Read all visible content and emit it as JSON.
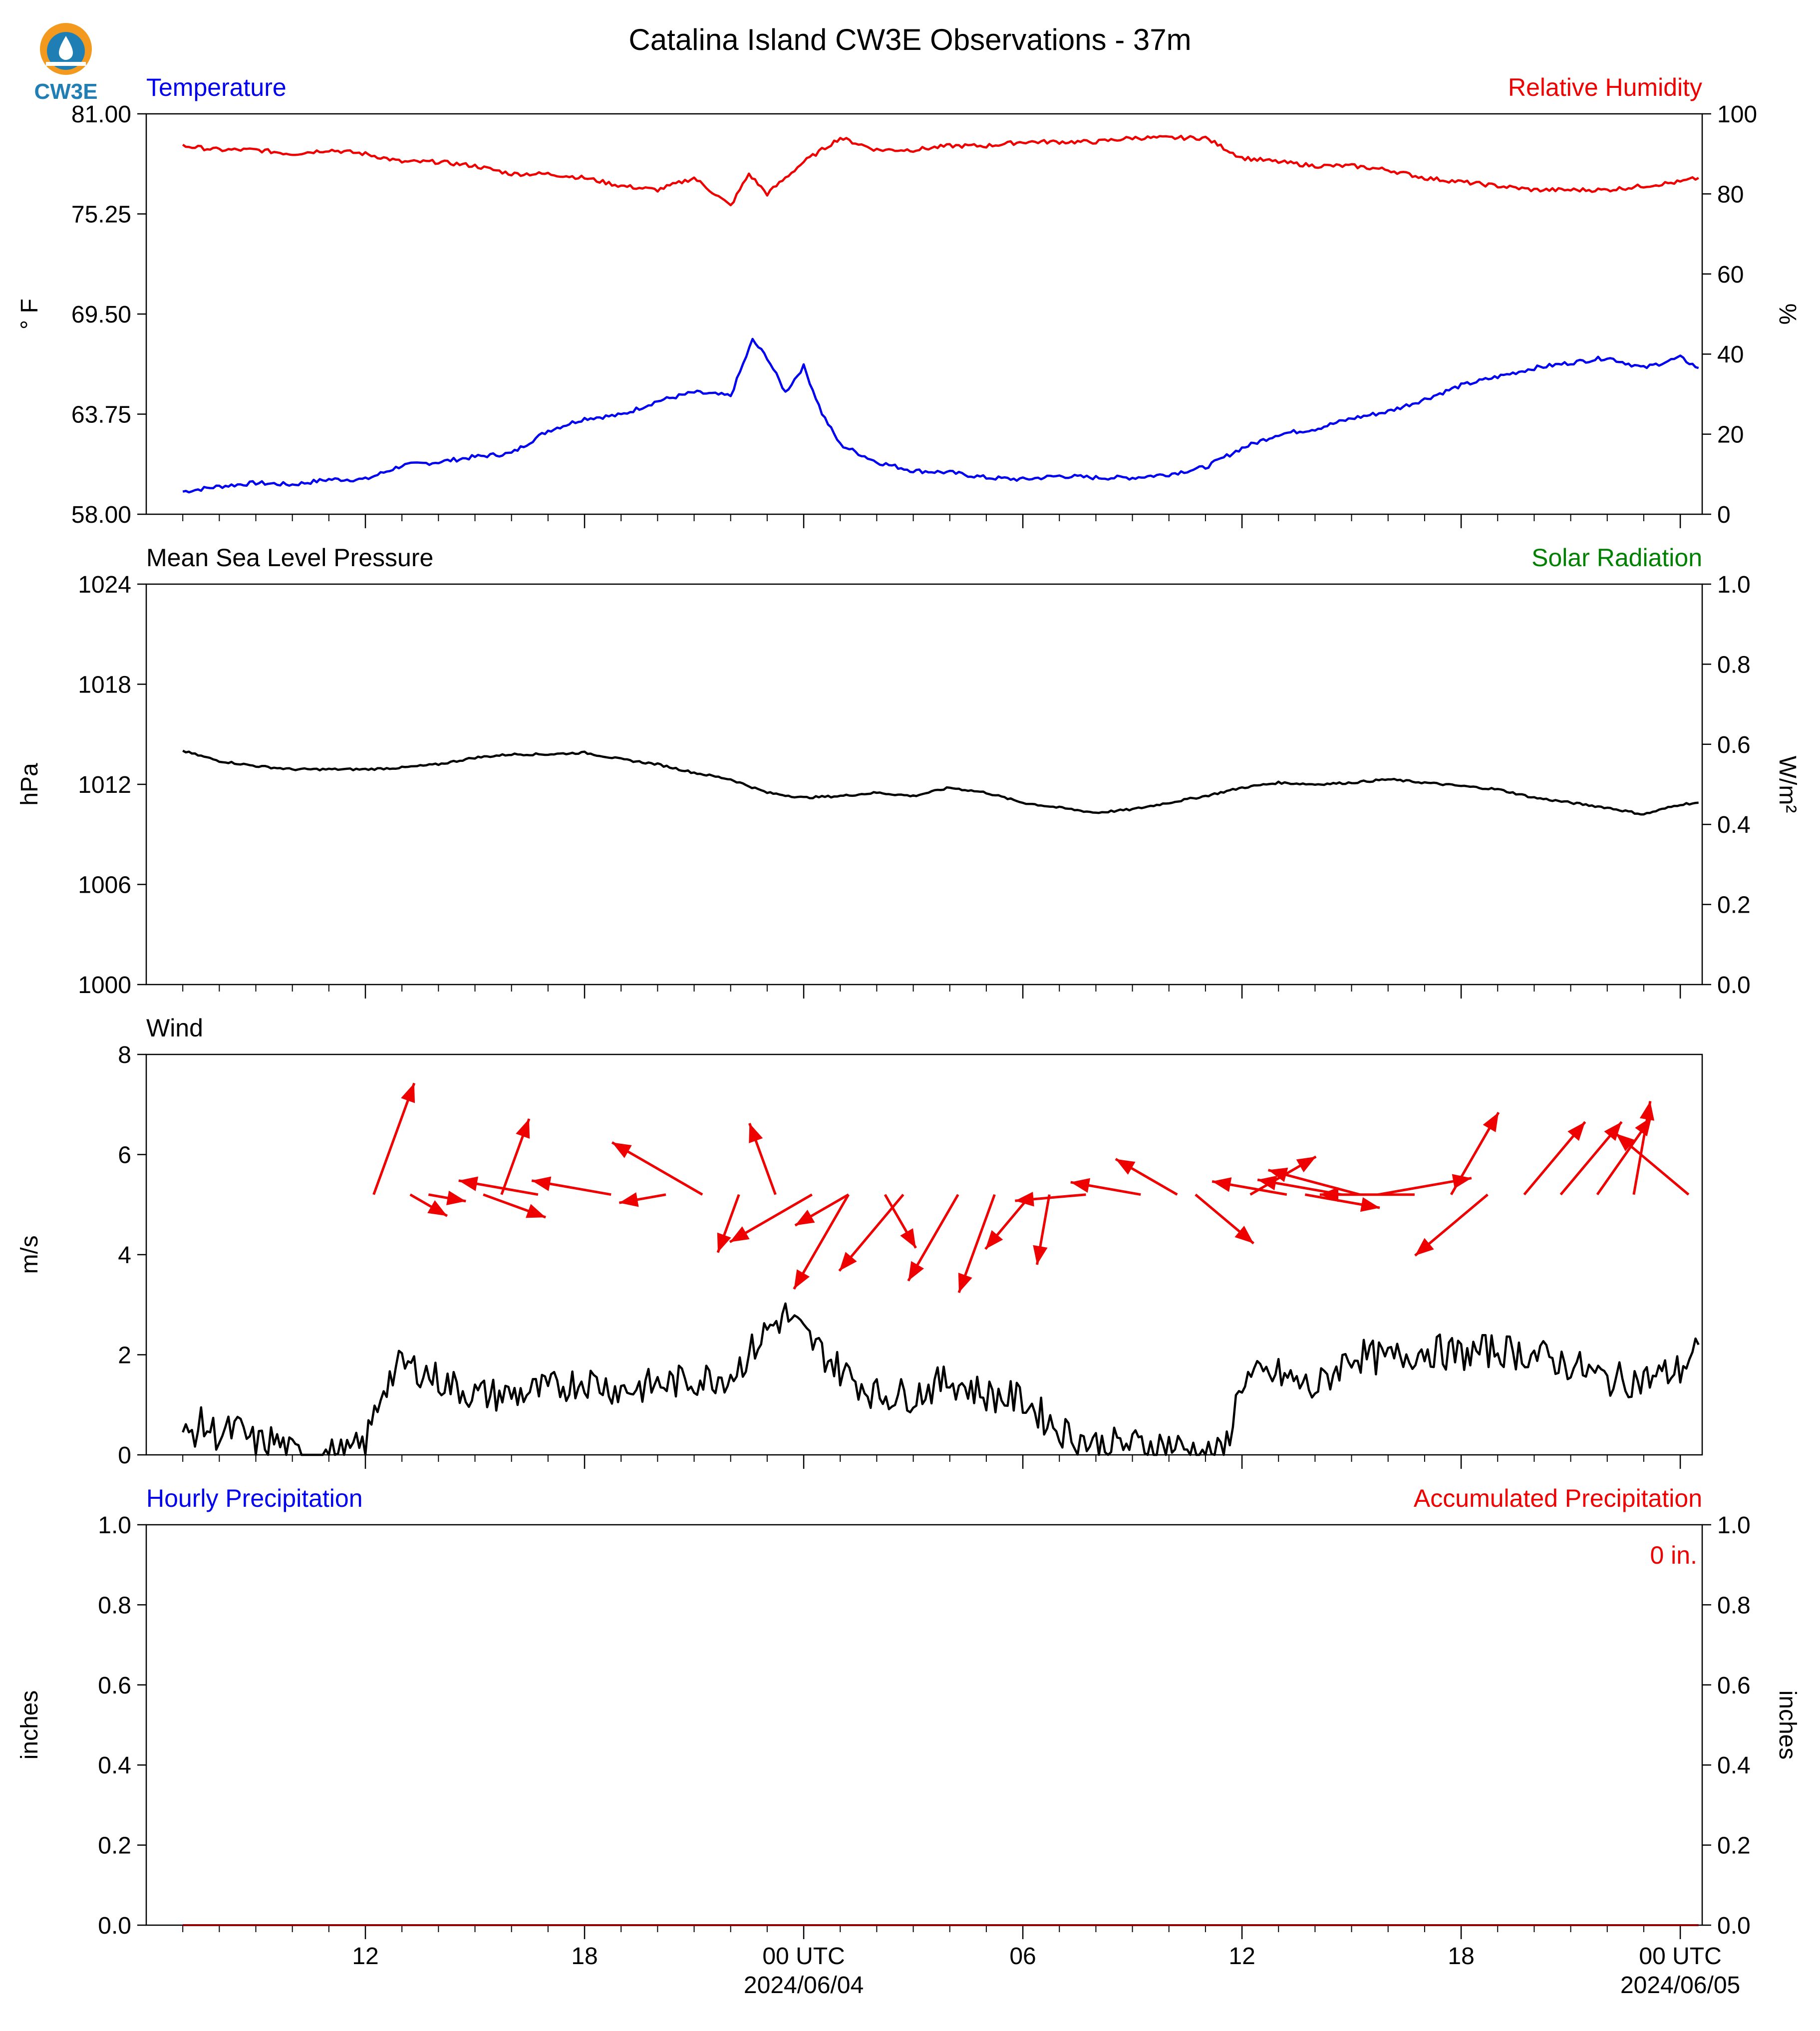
{
  "logo": {
    "text": "CW3E"
  },
  "title": "Catalina Island CW3E Observations - 37m",
  "colors": {
    "temperature": "#0000ee",
    "humidity": "#ee0000",
    "pressure": "#000000",
    "solar": "#008000",
    "wind": "#000000",
    "arrows": "#ee0000",
    "hourly_precip": "#0000ee",
    "accum_precip": "#ee0000"
  },
  "x_axis": {
    "tick_labels": [
      "12",
      "18",
      "00 UTC",
      "06",
      "12",
      "18",
      "00 UTC"
    ],
    "date_labels": [
      "2024/06/04",
      "2024/06/05"
    ]
  },
  "chart_data": [
    {
      "type": "line",
      "left_label": "Temperature",
      "right_label": "Relative Humidity",
      "ylabel": "° F",
      "y2label": "%",
      "ylim": [
        58,
        81
      ],
      "y2lim": [
        0,
        100
      ],
      "yticks": [
        "81.00",
        "75.25",
        "69.50",
        "63.75",
        "58.00"
      ],
      "y2ticks": [
        "100",
        "80",
        "60",
        "40",
        "20",
        "0"
      ],
      "series": [
        {
          "axis": "left",
          "hours": [
            7,
            8,
            9,
            10,
            11,
            12,
            13,
            14,
            15,
            16,
            17,
            18,
            19,
            20,
            21,
            22,
            22.6,
            23,
            23.5,
            24,
            24.5,
            25,
            26,
            27,
            28,
            29,
            30,
            31,
            32,
            33,
            34,
            35,
            36,
            37,
            38,
            39,
            40,
            41,
            42,
            43,
            44,
            45,
            46,
            47,
            48,
            48.5
          ],
          "values": [
            59.3,
            59.6,
            59.8,
            59.7,
            60.0,
            60.0,
            60.8,
            61.0,
            61.3,
            61.5,
            62.8,
            63.5,
            63.7,
            64.5,
            65.0,
            64.8,
            68.0,
            67.0,
            65.0,
            66.5,
            63.8,
            62.0,
            61.0,
            60.5,
            60.4,
            60.1,
            60.0,
            60.2,
            60.1,
            60.1,
            60.3,
            60.7,
            61.8,
            62.6,
            62.9,
            63.5,
            63.9,
            64.6,
            65.4,
            65.9,
            66.4,
            66.7,
            67.0,
            66.4,
            67.0,
            66.4
          ]
        },
        {
          "axis": "right",
          "hours": [
            7,
            8,
            9,
            10,
            11,
            12,
            13,
            14,
            15,
            16,
            17,
            18,
            19,
            20,
            21,
            22,
            22.5,
            23,
            24,
            25,
            26,
            27,
            28,
            29,
            30,
            31,
            32,
            33,
            34,
            35,
            36,
            37,
            38,
            39,
            40,
            41,
            42,
            43,
            44,
            45,
            46,
            47,
            48,
            48.5
          ],
          "values": [
            92,
            91,
            91,
            90,
            91,
            90,
            88,
            88,
            87,
            85,
            85,
            84,
            82,
            81,
            84,
            77,
            85,
            80,
            88,
            94,
            91,
            91,
            92,
            92,
            93,
            93,
            93,
            94,
            94,
            94,
            89,
            88,
            87,
            87,
            86,
            84,
            83,
            82,
            81,
            81,
            81,
            82,
            83,
            84
          ]
        }
      ]
    },
    {
      "type": "line",
      "left_label": "Mean Sea Level Pressure",
      "right_label": "Solar Radiation",
      "ylabel": "hPa",
      "y2label": "W/m²",
      "ylim": [
        1000,
        1024
      ],
      "y2lim": [
        0,
        1
      ],
      "yticks": [
        "1024",
        "1018",
        "1012",
        "1006",
        "1000"
      ],
      "y2ticks": [
        "1.0",
        "0.8",
        "0.6",
        "0.4",
        "0.2",
        "0.0"
      ],
      "series": [
        {
          "axis": "left",
          "hours": [
            7,
            8,
            9,
            10,
            11,
            12,
            13,
            14,
            15,
            16,
            17,
            18,
            19,
            20,
            21,
            22,
            23,
            24,
            25,
            26,
            27,
            28,
            29,
            30,
            31,
            32,
            33,
            34,
            35,
            36,
            37,
            38,
            39,
            40,
            41,
            42,
            43,
            44,
            45,
            46,
            47,
            48,
            48.5
          ],
          "values": [
            1014.0,
            1013.4,
            1013.1,
            1012.9,
            1012.9,
            1012.9,
            1013.0,
            1013.2,
            1013.6,
            1013.8,
            1013.8,
            1013.9,
            1013.5,
            1013.2,
            1012.7,
            1012.3,
            1011.5,
            1011.2,
            1011.3,
            1011.5,
            1011.3,
            1011.8,
            1011.5,
            1010.9,
            1010.6,
            1010.3,
            1010.5,
            1010.9,
            1011.3,
            1011.8,
            1012.1,
            1012.0,
            1012.1,
            1012.3,
            1012.1,
            1011.9,
            1011.7,
            1011.2,
            1010.9,
            1010.6,
            1010.2,
            1010.8,
            1010.9
          ]
        }
      ]
    },
    {
      "type": "line",
      "left_label": "Wind",
      "ylabel": "m/s",
      "ylim": [
        0,
        8
      ],
      "yticks": [
        "8",
        "6",
        "4",
        "2",
        "0"
      ],
      "series": [
        {
          "axis": "left",
          "hours": [
            7,
            7.5,
            8,
            8.5,
            9,
            9.5,
            10,
            10.5,
            11,
            11.5,
            12,
            12.5,
            13,
            13.5,
            14,
            15,
            16,
            17,
            18,
            19,
            20,
            21,
            22,
            22.5,
            23,
            23.5,
            24,
            25,
            26,
            27,
            28,
            29,
            30,
            31,
            32,
            33,
            34,
            35,
            35.5,
            36,
            37,
            38,
            39,
            40,
            41,
            42,
            43,
            44,
            45,
            46,
            47,
            48,
            48.5
          ],
          "values": [
            0.3,
            0.6,
            0.4,
            0.5,
            0.2,
            0.3,
            0.0,
            0.0,
            0.0,
            0.0,
            0.2,
            1.4,
            1.8,
            1.7,
            1.5,
            1.2,
            1.2,
            1.3,
            1.5,
            1.3,
            1.4,
            1.5,
            1.6,
            2.0,
            2.5,
            2.8,
            2.4,
            1.7,
            1.2,
            1.2,
            1.5,
            1.2,
            1.1,
            0.5,
            0.2,
            0.2,
            0.2,
            0.0,
            0.0,
            1.5,
            1.6,
            1.3,
            2.0,
            1.9,
            2.1,
            2.0,
            2.1,
            2.0,
            1.8,
            1.5,
            1.5,
            1.7,
            2.2
          ]
        }
      ],
      "arrows": {
        "hours": [
          12.5,
          13.5,
          14,
          15.5,
          16,
          17,
          19,
          20.5,
          21.5,
          22.5,
          23.5,
          24.5,
          25.5,
          25.5,
          26.5,
          27,
          28.5,
          29.5,
          30.5,
          31,
          32,
          33.5,
          34.5,
          35,
          36.5,
          37.5,
          38,
          39,
          39.5,
          40,
          41,
          42,
          43,
          44,
          45,
          46,
          47,
          48.5
        ],
        "direction_deg": [
          20,
          120,
          100,
          110,
          20,
          280,
          280,
          260,
          300,
          200,
          340,
          240,
          240,
          210,
          150,
          220,
          210,
          200,
          220,
          190,
          265,
          280,
          300,
          130,
          60,
          280,
          100,
          280,
          285,
          80,
          270,
          30,
          230,
          40,
          40,
          35,
          10,
          310
        ],
        "lengths": [
          2.5,
          0.9,
          0.8,
          1.4,
          1.7,
          1.7,
          1.7,
          1.0,
          2.2,
          1.3,
          1.6,
          2.0,
          1.3,
          2.3,
          1.3,
          2.1,
          2.1,
          2.2,
          1.5,
          1.5,
          1.5,
          1.5,
          1.5,
          1.6,
          1.6,
          1.6,
          1.6,
          1.8,
          2.0,
          2.0,
          2.0,
          2.0,
          2.0,
          2.0,
          2.0,
          2.0,
          2.0,
          2.0
        ]
      }
    },
    {
      "type": "line",
      "left_label": "Hourly Precipitation",
      "right_label": "Accumulated Precipitation",
      "ylabel": "inches",
      "y2label": "inches",
      "ylim": [
        0,
        1
      ],
      "y2lim": [
        0,
        1
      ],
      "yticks": [
        "1.0",
        "0.8",
        "0.6",
        "0.4",
        "0.2",
        "0.0"
      ],
      "y2ticks": [
        "1.0",
        "0.8",
        "0.6",
        "0.4",
        "0.2",
        "0.0"
      ],
      "annotation": "0 in.",
      "series": [
        {
          "axis": "left",
          "hours": [
            7,
            48.5
          ],
          "values": [
            0,
            0
          ]
        },
        {
          "axis": "right",
          "hours": [
            7,
            48.5
          ],
          "values": [
            0,
            0
          ]
        }
      ]
    }
  ]
}
